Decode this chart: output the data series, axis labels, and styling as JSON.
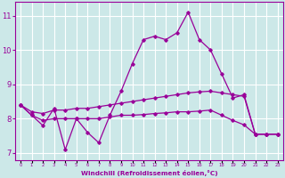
{
  "xlabel": "Windchill (Refroidissement éolien,°C)",
  "x": [
    0,
    1,
    2,
    3,
    4,
    5,
    6,
    7,
    8,
    9,
    10,
    11,
    12,
    13,
    14,
    15,
    16,
    17,
    18,
    19,
    20,
    21,
    22,
    23
  ],
  "line1": [
    8.4,
    8.1,
    7.8,
    8.3,
    7.1,
    8.0,
    7.6,
    7.3,
    8.1,
    8.8,
    9.6,
    10.3,
    10.4,
    10.3,
    10.5,
    11.1,
    10.3,
    10.0,
    9.3,
    8.6,
    8.7,
    7.55,
    7.55,
    7.55
  ],
  "line2": [
    8.4,
    8.2,
    8.15,
    8.25,
    8.25,
    8.3,
    8.3,
    8.35,
    8.4,
    8.45,
    8.5,
    8.55,
    8.6,
    8.65,
    8.7,
    8.75,
    8.78,
    8.8,
    8.75,
    8.7,
    8.65,
    7.55,
    7.55,
    7.55
  ],
  "line3": [
    8.4,
    8.1,
    7.95,
    8.0,
    8.0,
    8.0,
    8.0,
    8.0,
    8.05,
    8.1,
    8.1,
    8.12,
    8.15,
    8.17,
    8.2,
    8.2,
    8.22,
    8.25,
    8.1,
    7.95,
    7.82,
    7.55,
    7.55,
    7.55
  ],
  "color": "#990099",
  "background": "#cce8e8",
  "grid_color": "#ffffff",
  "ylim": [
    6.8,
    11.4
  ],
  "yticks": [
    7,
    8,
    9,
    10,
    11
  ],
  "tick_labels": [
    "0",
    "1",
    "2",
    "3",
    "4",
    "5",
    "6",
    "7",
    "8",
    "9",
    "10",
    "11",
    "12",
    "13",
    "14",
    "15",
    "16",
    "17",
    "18",
    "19",
    "20",
    "21",
    "22",
    "23"
  ]
}
